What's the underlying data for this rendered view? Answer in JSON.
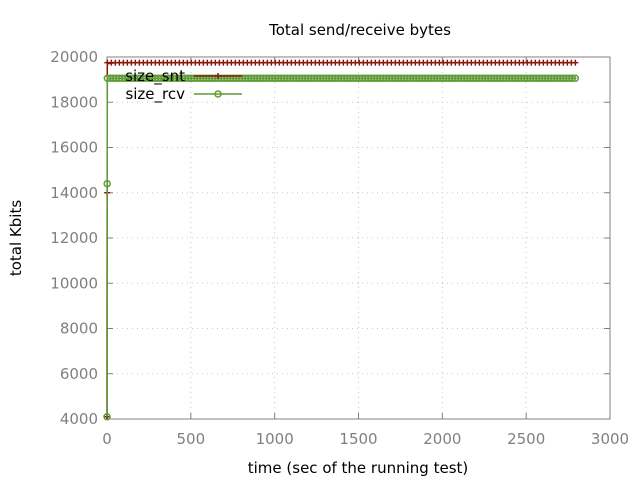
{
  "chart_data": {
    "type": "line",
    "title": "Total send/receive bytes",
    "xlabel": "time (sec of the running test)",
    "ylabel": "total Kbits",
    "xlim": [
      0,
      3000
    ],
    "ylim": [
      4000,
      20000
    ],
    "xticks": [
      0,
      500,
      1000,
      1500,
      2000,
      2500,
      3000
    ],
    "yticks": [
      4000,
      6000,
      8000,
      10000,
      12000,
      14000,
      16000,
      18000,
      20000
    ],
    "grid": true,
    "legend_position": "top-left",
    "series": [
      {
        "name": "size_snt",
        "color": "#8b1a0e",
        "marker": "plus",
        "points": [
          [
            0,
            4100
          ],
          [
            1,
            14000
          ],
          [
            2,
            19700
          ],
          [
            50,
            19750
          ],
          [
            2800,
            19750
          ]
        ]
      },
      {
        "name": "size_rcv",
        "color": "#5e9c36",
        "marker": "circle",
        "points": [
          [
            0,
            4100
          ],
          [
            1,
            14400
          ],
          [
            2,
            19050
          ],
          [
            50,
            19060
          ],
          [
            2800,
            19060
          ]
        ]
      }
    ]
  }
}
